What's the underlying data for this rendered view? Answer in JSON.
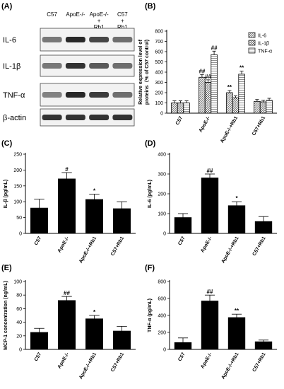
{
  "panels": [
    {
      "id": "A",
      "label": "(A)"
    },
    {
      "id": "B",
      "label": "(B)"
    },
    {
      "id": "C",
      "label": "(C)"
    },
    {
      "id": "D",
      "label": "(D)"
    },
    {
      "id": "E",
      "label": "(E)"
    },
    {
      "id": "F",
      "label": "(F)"
    }
  ],
  "blot": {
    "lanes": [
      "C57",
      "ApoE-/-",
      "ApoE-/-\n+\nRb1",
      "C57\n+\nRb1"
    ],
    "rows": [
      "IL-6",
      "IL-1β",
      "TNF-α",
      "β-actin"
    ],
    "band_intensity": [
      [
        0.55,
        0.95,
        0.8,
        0.6
      ],
      [
        0.55,
        0.9,
        0.7,
        0.6
      ],
      [
        0.5,
        0.95,
        0.85,
        0.6
      ],
      [
        0.9,
        0.9,
        0.9,
        0.9
      ]
    ]
  },
  "chart_data": [
    {
      "panel": "B",
      "type": "bar",
      "categories": [
        "C57",
        "ApoE-/-",
        "ApoE-/-+Rb1",
        "C57+Rb1"
      ],
      "series": [
        {
          "name": "IL-6",
          "values": [
            100,
            350,
            200,
            115
          ],
          "errors": [
            20,
            25,
            20,
            18
          ],
          "pattern": "diag",
          "sig": [
            "",
            "##",
            "**",
            ""
          ]
        },
        {
          "name": "IL-1β",
          "values": [
            100,
            300,
            150,
            110
          ],
          "errors": [
            20,
            25,
            18,
            15
          ],
          "pattern": "cross",
          "sig": [
            "",
            "##",
            "",
            ""
          ]
        },
        {
          "name": "TNF-α",
          "values": [
            100,
            570,
            380,
            125
          ],
          "errors": [
            20,
            35,
            30,
            20
          ],
          "pattern": "horiz",
          "sig": [
            "",
            "##",
            "**",
            ""
          ]
        }
      ],
      "ylabel": "Relative expression level of\nproteins（% of C57 control)",
      "ylim": [
        0,
        800
      ],
      "yticks": [
        0,
        100,
        200,
        300,
        400,
        500,
        600,
        700,
        800
      ],
      "legend": "top-right"
    },
    {
      "panel": "C",
      "type": "bar",
      "categories": [
        "C57",
        "ApoE-/-",
        "ApoE-/-+Rb1",
        "C57+Rb1"
      ],
      "values": [
        80,
        172,
        107,
        78
      ],
      "errors": [
        28,
        20,
        17,
        22
      ],
      "sig": [
        "",
        "#",
        "*",
        ""
      ],
      "ylabel": "IL-β (pg/mL)",
      "ylim": [
        0,
        250
      ],
      "yticks": [
        0,
        50,
        100,
        150,
        200,
        250
      ]
    },
    {
      "panel": "D",
      "type": "bar",
      "categories": [
        "C57",
        "ApoE-/-",
        "ApoE-/-+Rb1",
        "C57+Rb1"
      ],
      "values": [
        80,
        280,
        140,
        60
      ],
      "errors": [
        20,
        20,
        20,
        25
      ],
      "sig": [
        "",
        "##",
        "*",
        ""
      ],
      "ylabel": "IL-6 (pg/mL)",
      "ylim": [
        0,
        400
      ],
      "yticks": [
        0,
        100,
        200,
        300,
        400
      ]
    },
    {
      "panel": "E",
      "type": "bar",
      "categories": [
        "C57",
        "ApoE-/-",
        "ApoE-/-+Rb1",
        "C57+Rb1"
      ],
      "values": [
        25,
        72,
        45,
        27
      ],
      "errors": [
        6,
        6,
        5,
        7
      ],
      "sig": [
        "",
        "##",
        "*",
        ""
      ],
      "ylabel": "MCP-1 concentration (ng/mL)",
      "ylim": [
        0,
        100
      ],
      "yticks": [
        0,
        20,
        40,
        60,
        80,
        100
      ]
    },
    {
      "panel": "F",
      "type": "bar",
      "categories": [
        "C57",
        "ApoE-/-",
        "ApoE-/-+Rb1",
        "C57+Rb1"
      ],
      "values": [
        80,
        570,
        375,
        90
      ],
      "errors": [
        55,
        70,
        40,
        20
      ],
      "sig": [
        "",
        "##",
        "**",
        ""
      ],
      "ylabel": "TNF-α (pg/mL)",
      "ylim": [
        0,
        800
      ],
      "yticks": [
        0,
        200,
        400,
        600,
        800
      ]
    }
  ]
}
